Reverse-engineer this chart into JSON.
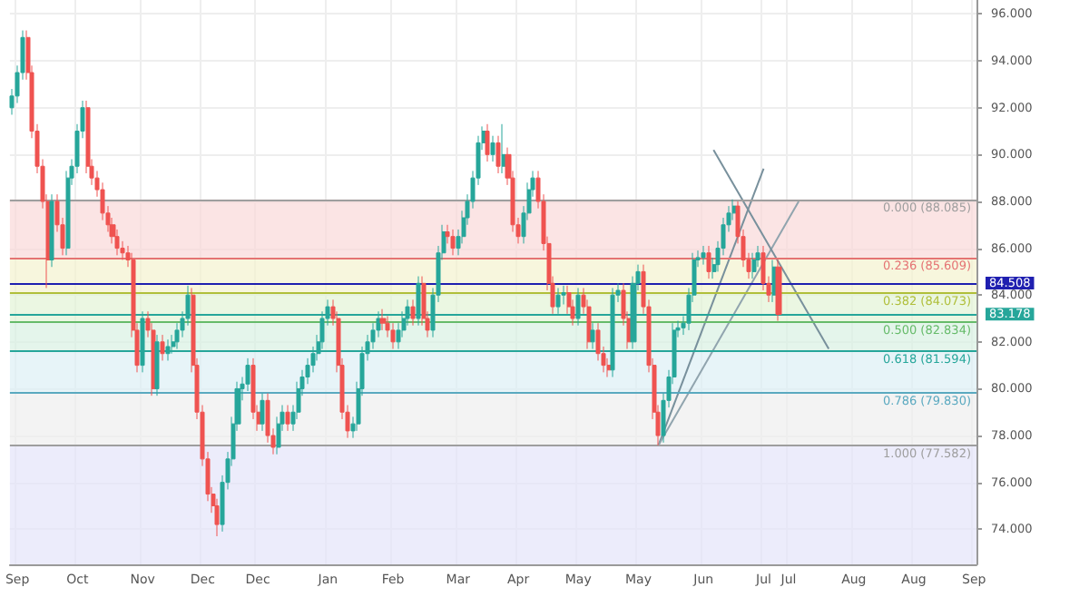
{
  "chart_data": {
    "type": "candlestick",
    "categories": [
      null,
      "Sep",
      null,
      null,
      null,
      null,
      null,
      null,
      null,
      null,
      null,
      null,
      null,
      "Oct",
      null,
      null,
      null,
      null,
      null,
      null,
      null,
      null,
      null,
      null,
      null,
      null,
      "Nov",
      null,
      null,
      null,
      null,
      null,
      null,
      null,
      null,
      null,
      null,
      null,
      "Dec",
      null,
      null,
      null,
      null,
      null,
      null,
      null,
      null,
      null,
      null,
      "Dec",
      null,
      null,
      null,
      null,
      null,
      null,
      null,
      null,
      null,
      null,
      null,
      null,
      null,
      "Jan",
      null,
      null,
      null,
      null,
      null,
      null,
      null,
      null,
      null,
      null,
      null,
      null,
      "Feb",
      null,
      null,
      null,
      null,
      null,
      null,
      null,
      null,
      null,
      null,
      null,
      null,
      "Mar",
      null,
      null,
      null,
      null,
      null,
      null,
      null,
      null,
      null,
      null,
      null,
      "Apr",
      null,
      null,
      null,
      null,
      null,
      null,
      null,
      null,
      null,
      null,
      null,
      "May",
      null,
      null,
      null,
      null,
      null,
      null,
      null,
      null,
      null,
      null,
      null,
      "May",
      null,
      null,
      null,
      null,
      null,
      null,
      null,
      null,
      null,
      null,
      null,
      null,
      "Jun",
      null,
      null,
      null,
      null,
      null,
      null,
      null,
      null,
      null,
      null,
      null,
      "Jul",
      null,
      null,
      null,
      null,
      "Jul",
      null,
      null,
      null,
      null,
      null,
      null,
      null,
      null,
      null,
      null,
      null,
      null,
      "Aug",
      null,
      null,
      null,
      null,
      null,
      null,
      null,
      null,
      null,
      null,
      null,
      "Aug",
      null,
      null,
      null,
      null,
      null,
      null,
      null,
      null,
      null,
      null,
      null,
      "Sep"
    ],
    "ohlc": [
      [
        92,
        92.8,
        91.7,
        92.5
      ],
      [
        92.5,
        93.8,
        92.2,
        93.5
      ],
      [
        93.5,
        95.3,
        93.2,
        95
      ],
      [
        95,
        95.3,
        93.2,
        93.5
      ],
      [
        93.5,
        93.8,
        90.7,
        91
      ],
      [
        91,
        91.3,
        89.2,
        89.5
      ],
      [
        89.5,
        89.8,
        87.7,
        88
      ],
      [
        88,
        88.3,
        84.3,
        85.5
      ],
      [
        85.5,
        88.3,
        85.2,
        88
      ],
      [
        88,
        88.3,
        86.7,
        87
      ],
      [
        87,
        87.3,
        85.7,
        86
      ],
      [
        86,
        89.3,
        85.7,
        89
      ],
      [
        89,
        89.8,
        88.7,
        89.5
      ],
      [
        89.5,
        91.3,
        89.2,
        91
      ],
      [
        91,
        92.3,
        90.7,
        92
      ],
      [
        92,
        92.3,
        89.2,
        89.5
      ],
      [
        89.5,
        89.8,
        88.7,
        89
      ],
      [
        89,
        89.3,
        88.2,
        88.5
      ],
      [
        88.5,
        88.8,
        87.2,
        87.5
      ],
      [
        87.5,
        87.8,
        86.7,
        87
      ],
      [
        87,
        87.3,
        86.2,
        86.5
      ],
      [
        86.5,
        86.8,
        85.7,
        86
      ],
      [
        86,
        86.3,
        85.5,
        85.8
      ],
      [
        85.8,
        86.1,
        85.2,
        85.5
      ],
      [
        85.5,
        85.8,
        82.2,
        82.5
      ],
      [
        82.5,
        82.8,
        80.7,
        81
      ],
      [
        81,
        83.3,
        80.7,
        83
      ],
      [
        83,
        83.3,
        82.2,
        82.5
      ],
      [
        82.5,
        82.8,
        79.7,
        80
      ],
      [
        80,
        82.3,
        79.7,
        82
      ],
      [
        82,
        82.3,
        81.2,
        81.5
      ],
      [
        81.5,
        82.1,
        81.2,
        81.8
      ],
      [
        81.8,
        82.3,
        81.5,
        82
      ],
      [
        82,
        82.8,
        81.7,
        82.5
      ],
      [
        82.5,
        83.3,
        82.2,
        83
      ],
      [
        83,
        84.4,
        82.7,
        84
      ],
      [
        84,
        84.3,
        80.7,
        81
      ],
      [
        81,
        81.3,
        78.7,
        79
      ],
      [
        79,
        79.3,
        76.7,
        77
      ],
      [
        77,
        77.3,
        75.2,
        75.5
      ],
      [
        75.5,
        75.8,
        74.7,
        75
      ],
      [
        75,
        75.3,
        73.7,
        74.2
      ],
      [
        74.2,
        76.3,
        73.9,
        76
      ],
      [
        76,
        77.3,
        75.7,
        77
      ],
      [
        77,
        78.8,
        76.7,
        78.5
      ],
      [
        78.5,
        80.3,
        78.2,
        80
      ],
      [
        80,
        80.5,
        79.5,
        80.2
      ],
      [
        80.2,
        81.3,
        79.9,
        81
      ],
      [
        81,
        81.3,
        78.7,
        79
      ],
      [
        79,
        79.3,
        78.2,
        78.5
      ],
      [
        78.5,
        79.8,
        78.2,
        79.5
      ],
      [
        79.5,
        79.8,
        77.7,
        78
      ],
      [
        78,
        78.3,
        77.2,
        77.5
      ],
      [
        77.5,
        78.8,
        77.2,
        78.5
      ],
      [
        78.5,
        79.3,
        78.2,
        79
      ],
      [
        79,
        79.3,
        78.2,
        78.5
      ],
      [
        78.5,
        79.3,
        78.2,
        79
      ],
      [
        79,
        80.3,
        78.7,
        80
      ],
      [
        80,
        80.8,
        79.7,
        80.5
      ],
      [
        80.5,
        81.3,
        80.2,
        81
      ],
      [
        81,
        81.8,
        80.7,
        81.5
      ],
      [
        81.5,
        82.3,
        81.2,
        82
      ],
      [
        82,
        83.3,
        81.7,
        83
      ],
      [
        83,
        83.8,
        82.7,
        83.5
      ],
      [
        83.5,
        83.8,
        82.7,
        83
      ],
      [
        83,
        83.3,
        80.7,
        81
      ],
      [
        81,
        81.3,
        78.7,
        79
      ],
      [
        79,
        79.3,
        77.9,
        78.2
      ],
      [
        78.2,
        78.8,
        77.9,
        78.5
      ],
      [
        78.5,
        80.3,
        78.2,
        80
      ],
      [
        80,
        81.8,
        79.7,
        81.5
      ],
      [
        81.5,
        82.3,
        81.2,
        82
      ],
      [
        82,
        82.8,
        81.7,
        82.5
      ],
      [
        82.5,
        83.3,
        82.2,
        83
      ],
      [
        83,
        83.4,
        82.5,
        82.8
      ],
      [
        82.8,
        83.1,
        82.2,
        82.5
      ],
      [
        82.5,
        82.8,
        81.7,
        82
      ],
      [
        82,
        82.8,
        81.7,
        82.5
      ],
      [
        82.5,
        83.3,
        82.2,
        83
      ],
      [
        83,
        83.8,
        82.7,
        83.5
      ],
      [
        83.5,
        83.8,
        82.7,
        83
      ],
      [
        83,
        84.8,
        82.7,
        84.5
      ],
      [
        84.5,
        84.8,
        82.7,
        83
      ],
      [
        83,
        83.3,
        82.2,
        82.5
      ],
      [
        82.5,
        84.3,
        82.2,
        84
      ],
      [
        84,
        86.1,
        83.7,
        85.8
      ],
      [
        85.8,
        87,
        85.5,
        86.7
      ],
      [
        86.7,
        87,
        86.2,
        86.5
      ],
      [
        86.5,
        86.8,
        85.7,
        86
      ],
      [
        86,
        86.8,
        85.7,
        86.5
      ],
      [
        86.5,
        87.6,
        86.2,
        87.3
      ],
      [
        87.3,
        88.3,
        87,
        88
      ],
      [
        88,
        89.3,
        87.7,
        89
      ],
      [
        89,
        90.8,
        88.7,
        90.5
      ],
      [
        90.5,
        91.2,
        90.2,
        91
      ],
      [
        91,
        91.3,
        89.7,
        90
      ],
      [
        90,
        90.8,
        89.7,
        90.5
      ],
      [
        90.5,
        90.8,
        89.2,
        89.5
      ],
      [
        89.5,
        91.3,
        89.2,
        90
      ],
      [
        90,
        90.3,
        88.7,
        89
      ],
      [
        89,
        89.3,
        86.7,
        87
      ],
      [
        87,
        87.3,
        86.2,
        86.5
      ],
      [
        86.5,
        87.8,
        86.2,
        87.5
      ],
      [
        87.5,
        88.8,
        87.2,
        88.5
      ],
      [
        88.5,
        89.3,
        88.2,
        89
      ],
      [
        89,
        89.3,
        87.7,
        88
      ],
      [
        88,
        88.3,
        85.9,
        86.2
      ],
      [
        86.2,
        86.5,
        84.2,
        84.5
      ],
      [
        84.5,
        84.8,
        83.2,
        83.5
      ],
      [
        83.5,
        84.3,
        83.2,
        84
      ],
      [
        84,
        84.4,
        83.6,
        84.1
      ],
      [
        84.1,
        84.4,
        83.2,
        83.5
      ],
      [
        83.5,
        83.8,
        82.7,
        83
      ],
      [
        83,
        84.3,
        82.7,
        84
      ],
      [
        84,
        84.3,
        83.2,
        83.5
      ],
      [
        83.5,
        83.8,
        81.7,
        82
      ],
      [
        82,
        82.8,
        81.7,
        82.5
      ],
      [
        82.5,
        82.8,
        81.2,
        81.5
      ],
      [
        81.5,
        81.8,
        80.7,
        81
      ],
      [
        81,
        81.3,
        80.5,
        80.8
      ],
      [
        80.8,
        84.3,
        80.5,
        84
      ],
      [
        84,
        84.5,
        83.7,
        84.2
      ],
      [
        84.2,
        84.5,
        82.7,
        83
      ],
      [
        83,
        83.3,
        81.7,
        82
      ],
      [
        82,
        84.8,
        81.7,
        84.5
      ],
      [
        84.5,
        85.3,
        84.2,
        85
      ],
      [
        85,
        85.3,
        83.2,
        83.5
      ],
      [
        83.5,
        83.8,
        80.7,
        81
      ],
      [
        81,
        81.3,
        78.7,
        79
      ],
      [
        79,
        79.3,
        77.582,
        78
      ],
      [
        78,
        79.8,
        77.7,
        79.5
      ],
      [
        79.5,
        80.8,
        79.2,
        80.5
      ],
      [
        80.5,
        82.8,
        80.2,
        82.5
      ],
      [
        82.5,
        82.9,
        82.2,
        82.6
      ],
      [
        82.6,
        83.1,
        82.3,
        82.8
      ],
      [
        82.8,
        84.3,
        82.5,
        84
      ],
      [
        84,
        85.8,
        83.7,
        85.5
      ],
      [
        85.5,
        85.9,
        85.2,
        85.6
      ],
      [
        85.6,
        86.1,
        85.3,
        85.8
      ],
      [
        85.8,
        86.1,
        84.7,
        85
      ],
      [
        85,
        85.6,
        84.7,
        85.3
      ],
      [
        85.3,
        86.3,
        85,
        86
      ],
      [
        86,
        87.3,
        85.7,
        87
      ],
      [
        87,
        87.8,
        86.7,
        87.5
      ],
      [
        87.5,
        88.085,
        87.2,
        87.8
      ],
      [
        87.8,
        88,
        86.2,
        86.5
      ],
      [
        86.5,
        86.8,
        85.2,
        85.5
      ],
      [
        85.5,
        85.8,
        84.7,
        85
      ],
      [
        85,
        85.8,
        84.7,
        85.5
      ],
      [
        85.5,
        86.1,
        85.2,
        85.8
      ],
      [
        85.8,
        86.1,
        84.2,
        84.5
      ],
      [
        84.5,
        84.8,
        83.7,
        84
      ],
      [
        84,
        85.5,
        83.7,
        85.2
      ],
      [
        85.2,
        85.5,
        82.9,
        83.178
      ],
      null,
      null,
      null,
      null,
      null,
      null,
      null,
      null,
      null,
      null,
      null,
      null,
      null,
      null,
      null,
      null,
      null,
      null,
      null,
      null,
      null,
      null,
      null,
      null,
      null,
      null,
      null,
      null,
      null,
      null,
      null,
      null,
      null,
      null,
      null,
      null,
      null,
      null,
      null
    ],
    "colors": [
      "#26a69a",
      "#26a69a",
      "#26a69a",
      "#ef5350",
      "#ef5350",
      "#ef5350",
      "#ef5350",
      "#ef5350",
      "#26a69a",
      "#ef5350",
      "#ef5350",
      "#26a69a",
      "#26a69a",
      "#26a69a",
      "#26a69a",
      "#ef5350",
      "#ef5350",
      "#ef5350",
      "#ef5350",
      "#ef5350",
      "#ef5350",
      "#ef5350",
      "#ef5350",
      "#ef5350",
      "#ef5350",
      "#ef5350",
      "#26a69a",
      "#ef5350",
      "#ef5350",
      "#26a69a",
      "#ef5350",
      "#26a69a",
      "#26a69a",
      "#26a69a",
      "#26a69a",
      "#26a69a",
      "#ef5350",
      "#ef5350",
      "#ef5350",
      "#ef5350",
      "#ef5350",
      "#ef5350",
      "#26a69a",
      "#26a69a",
      "#26a69a",
      "#26a69a",
      "#26a69a",
      "#26a69a",
      "#ef5350",
      "#ef5350",
      "#26a69a",
      "#ef5350",
      "#ef5350",
      "#26a69a",
      "#26a69a",
      "#ef5350",
      "#26a69a",
      "#26a69a",
      "#26a69a",
      "#26a69a",
      "#26a69a",
      "#26a69a",
      "#26a69a",
      "#26a69a",
      "#ef5350",
      "#ef5350",
      "#ef5350",
      "#ef5350",
      "#26a69a",
      "#26a69a",
      "#26a69a",
      "#26a69a",
      "#26a69a",
      "#26a69a",
      "#ef5350",
      "#ef5350",
      "#ef5350",
      "#26a69a",
      "#26a69a",
      "#26a69a",
      "#ef5350",
      "#26a69a",
      "#ef5350",
      "#ef5350",
      "#26a69a",
      "#26a69a",
      "#26a69a",
      "#ef5350",
      "#ef5350",
      "#26a69a",
      "#26a69a",
      "#26a69a",
      "#26a69a",
      "#26a69a",
      "#26a69a",
      "#ef5350",
      "#26a69a",
      "#ef5350",
      "#26a69a",
      "#ef5350",
      "#ef5350",
      "#ef5350",
      "#26a69a",
      "#26a69a",
      "#26a69a",
      "#ef5350",
      "#ef5350",
      "#ef5350",
      "#ef5350",
      "#26a69a",
      "#26a69a",
      "#ef5350",
      "#ef5350",
      "#26a69a",
      "#ef5350",
      "#ef5350",
      "#26a69a",
      "#ef5350",
      "#ef5350",
      "#ef5350",
      "#26a69a",
      "#26a69a",
      "#ef5350",
      "#ef5350",
      "#26a69a",
      "#26a69a",
      "#ef5350",
      "#ef5350",
      "#ef5350",
      "#ef5350",
      "#26a69a",
      "#26a69a",
      "#26a69a",
      "#26a69a",
      "#26a69a",
      "#26a69a",
      "#26a69a",
      "#26a69a",
      "#26a69a",
      "#ef5350",
      "#26a69a",
      "#26a69a",
      "#26a69a",
      "#26a69a",
      "#26a69a",
      "#ef5350",
      "#ef5350",
      "#ef5350",
      "#26a69a",
      "#26a69a",
      "#ef5350",
      "#ef5350",
      "#26a69a",
      "#ef5350",
      null,
      null,
      null,
      null,
      null,
      null,
      null,
      null,
      null,
      null,
      null,
      null,
      null,
      null,
      null,
      null,
      null,
      null,
      null,
      null,
      null,
      null,
      null,
      null,
      null,
      null,
      null,
      null,
      null,
      null,
      null,
      null,
      null,
      null,
      null,
      null,
      null,
      null,
      null
    ],
    "series": [
      {
        "type": "line",
        "color": "#78909c",
        "values": [
          null,
          null,
          null,
          null,
          null,
          null,
          null,
          null,
          null,
          null,
          null,
          null,
          null,
          null,
          null,
          null,
          null,
          null,
          null,
          null,
          null,
          null,
          null,
          null,
          null,
          null,
          null,
          null,
          null,
          null,
          null,
          null,
          null,
          null,
          null,
          null,
          null,
          null,
          null,
          null,
          null,
          null,
          null,
          null,
          null,
          null,
          null,
          null,
          null,
          null,
          null,
          null,
          null,
          null,
          null,
          null,
          null,
          null,
          null,
          null,
          null,
          null,
          null,
          null,
          null,
          null,
          null,
          null,
          null,
          null,
          null,
          null,
          null,
          null,
          null,
          null,
          null,
          null,
          null,
          null,
          null,
          null,
          null,
          null,
          null,
          null,
          null,
          null,
          null,
          null,
          null,
          null,
          null,
          null,
          null,
          null,
          null,
          null,
          null,
          null,
          null,
          null,
          null,
          null,
          null,
          null,
          null,
          null,
          null,
          null,
          null,
          null,
          null,
          null,
          null,
          null,
          null,
          null,
          null,
          null,
          null,
          null,
          null,
          null,
          null,
          null,
          null,
          null,
          null,
          77.582,
          null,
          null,
          null,
          null,
          null,
          null,
          null,
          null,
          null,
          null,
          null,
          null,
          null,
          null,
          null,
          null,
          null,
          null,
          null,
          null,
          89.4,
          null,
          null,
          null,
          null,
          null,
          null,
          null,
          null,
          null,
          null,
          null,
          null,
          null,
          null,
          null,
          null,
          null,
          null,
          null,
          null,
          null,
          null,
          null,
          null,
          null,
          null,
          null,
          null,
          null,
          null,
          null,
          null,
          null,
          null,
          null,
          null,
          null,
          null,
          null,
          null,
          null,
          null
        ]
      },
      {
        "type": "line",
        "color": "#90a4ae",
        "values": [
          null,
          null,
          null,
          null,
          null,
          null,
          null,
          null,
          null,
          null,
          null,
          null,
          null,
          null,
          null,
          null,
          null,
          null,
          null,
          null,
          null,
          null,
          null,
          null,
          null,
          null,
          null,
          null,
          null,
          null,
          null,
          null,
          null,
          null,
          null,
          null,
          null,
          null,
          null,
          null,
          null,
          null,
          null,
          null,
          null,
          null,
          null,
          null,
          null,
          null,
          null,
          null,
          null,
          null,
          null,
          null,
          null,
          null,
          null,
          null,
          null,
          null,
          null,
          null,
          null,
          null,
          null,
          null,
          null,
          null,
          null,
          null,
          null,
          null,
          null,
          null,
          null,
          null,
          null,
          null,
          null,
          null,
          null,
          null,
          null,
          null,
          null,
          null,
          null,
          null,
          null,
          null,
          null,
          null,
          null,
          null,
          null,
          null,
          null,
          null,
          null,
          null,
          null,
          null,
          null,
          null,
          null,
          null,
          null,
          null,
          null,
          null,
          null,
          null,
          null,
          null,
          null,
          null,
          null,
          null,
          null,
          null,
          null,
          null,
          null,
          null,
          null,
          null,
          null,
          77.582,
          null,
          null,
          null,
          null,
          null,
          null,
          null,
          null,
          null,
          null,
          null,
          null,
          null,
          null,
          null,
          null,
          null,
          null,
          null,
          null,
          null,
          null,
          null,
          null,
          null,
          null,
          null,
          88.0,
          null,
          null,
          null,
          null,
          null,
          null,
          null,
          null,
          null,
          null,
          null,
          null,
          null,
          null,
          null,
          null,
          null,
          null,
          null,
          null,
          null,
          null,
          null,
          null,
          null,
          null,
          null,
          null,
          null,
          null,
          null,
          null,
          null,
          null,
          null
        ]
      },
      {
        "type": "line",
        "color": "#78909c",
        "values": [
          null,
          null,
          null,
          null,
          null,
          null,
          null,
          null,
          null,
          null,
          null,
          null,
          null,
          null,
          null,
          null,
          null,
          null,
          null,
          null,
          null,
          null,
          null,
          null,
          null,
          null,
          null,
          null,
          null,
          null,
          null,
          null,
          null,
          null,
          null,
          null,
          null,
          null,
          null,
          null,
          null,
          null,
          null,
          null,
          null,
          null,
          null,
          null,
          null,
          null,
          null,
          null,
          null,
          null,
          null,
          null,
          null,
          null,
          null,
          null,
          null,
          null,
          null,
          null,
          null,
          null,
          null,
          null,
          null,
          null,
          null,
          null,
          null,
          null,
          null,
          null,
          null,
          null,
          null,
          null,
          null,
          null,
          null,
          null,
          null,
          null,
          null,
          null,
          null,
          null,
          null,
          null,
          null,
          null,
          null,
          null,
          null,
          null,
          null,
          null,
          null,
          null,
          null,
          null,
          null,
          null,
          null,
          null,
          null,
          null,
          null,
          null,
          null,
          null,
          null,
          null,
          null,
          null,
          null,
          null,
          null,
          null,
          null,
          null,
          null,
          null,
          null,
          null,
          null,
          null,
          null,
          null,
          null,
          null,
          null,
          null,
          null,
          null,
          null,
          null,
          90.2,
          null,
          null,
          null,
          null,
          null,
          null,
          null,
          null,
          null,
          null,
          null,
          null,
          null,
          null,
          null,
          null,
          null,
          null,
          null,
          null,
          null,
          null,
          81.7,
          null,
          null,
          null,
          null,
          null,
          null,
          null,
          null,
          null,
          null,
          null,
          null,
          null,
          null,
          null,
          null,
          null,
          null,
          null,
          null,
          null,
          null,
          null,
          null,
          null,
          null,
          null,
          null,
          null
        ]
      }
    ],
    "ylim": [
      72.5,
      96.6
    ],
    "yticks": [
      {
        "value": 74,
        "label": "74.000"
      },
      {
        "value": 76,
        "label": "76.000"
      },
      {
        "value": 78,
        "label": "78.000"
      },
      {
        "value": 80,
        "label": "80.000"
      },
      {
        "value": 82,
        "label": "82.000"
      },
      {
        "value": 84,
        "label": "84.000"
      },
      {
        "value": 86,
        "label": "86.000"
      },
      {
        "value": 88,
        "label": "88.000"
      },
      {
        "value": 90,
        "label": "90.000"
      },
      {
        "value": 92,
        "label": "92.000"
      },
      {
        "value": 94,
        "label": "94.000"
      },
      {
        "value": 96,
        "label": "96.000"
      }
    ],
    "grid": true,
    "ref_lines": [
      {
        "axis": "y",
        "value": 84.508,
        "label": "84.508",
        "color": "#1f1fb0"
      },
      {
        "axis": "y",
        "value": 83.178,
        "label": "83.178",
        "color": "#26a69a"
      },
      {
        "axis": "y",
        "value": 88.085,
        "label": "0.000 (88.085)",
        "color": "#9e9e9e"
      },
      {
        "axis": "y",
        "value": 85.609,
        "label": "0.236 (85.609)",
        "color": "#e57373"
      },
      {
        "axis": "y",
        "value": 84.073,
        "label": "0.382 (84.073)",
        "color": "#b0bf3a"
      },
      {
        "axis": "y",
        "value": 82.834,
        "label": "0.500 (82.834)",
        "color": "#66bb6a"
      },
      {
        "axis": "y",
        "value": 81.594,
        "label": "0.618 (81.594)",
        "color": "#26a69a"
      },
      {
        "axis": "y",
        "value": 79.83,
        "label": "0.786 (79.830)",
        "color": "#5aa9c0"
      },
      {
        "axis": "y",
        "value": 77.582,
        "label": "1.000 (77.582)",
        "color": "#9e9e9e"
      }
    ],
    "bands": [
      {
        "axis": "y",
        "from": 85.609,
        "to": 88.085,
        "color": "#f9d9d9"
      },
      {
        "axis": "y",
        "from": 84.073,
        "to": 85.609,
        "color": "#f4f2cf"
      },
      {
        "axis": "y",
        "from": 82.834,
        "to": 84.073,
        "color": "#e2f3d6"
      },
      {
        "axis": "y",
        "from": 81.594,
        "to": 82.834,
        "color": "#d9f1e2"
      },
      {
        "axis": "y",
        "from": 79.83,
        "to": 81.594,
        "color": "#ddf0f5"
      },
      {
        "axis": "y",
        "from": 77.582,
        "to": 79.83,
        "color": "#eeeeee"
      },
      {
        "axis": "y",
        "from": 72.5,
        "to": 77.582,
        "color": "#e4e4fa"
      }
    ]
  }
}
